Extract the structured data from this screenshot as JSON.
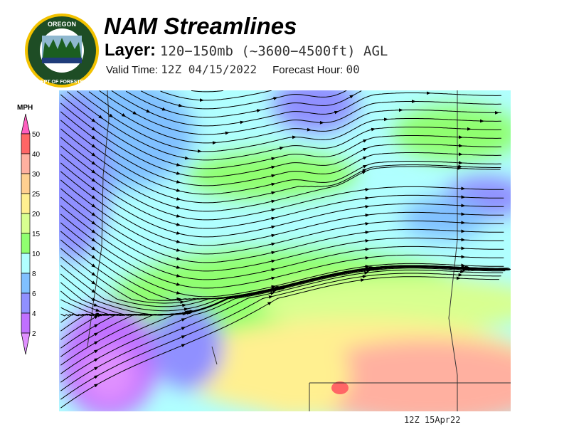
{
  "logo": {
    "text_top": "OREGON",
    "text_ring": "DEPARTMENT OF FORESTRY"
  },
  "header": {
    "title": "NAM Streamlines",
    "layer_label": "Layer:",
    "layer_value": "120−150mb (~3600−4500ft) AGL",
    "valid_label": "Valid Time:",
    "valid_value": "12Z 04/15/2022",
    "forecast_label": "Forecast Hour:",
    "forecast_value": "00"
  },
  "legend": {
    "units": "MPH",
    "levels": [
      "50",
      "40",
      "30",
      "25",
      "20",
      "15",
      "10",
      "8",
      "6",
      "4",
      "2"
    ],
    "colors": {
      "above": "#ff5fc0",
      "bins": [
        "#ff6666",
        "#ffb0a0",
        "#ffd090",
        "#fff090",
        "#d8ff90",
        "#90ff70",
        "#b0ffff",
        "#80c0ff",
        "#9090ff",
        "#c070ff"
      ],
      "below": "#e090ff"
    }
  },
  "footer": {
    "stamp": "12Z 15Apr22"
  }
}
